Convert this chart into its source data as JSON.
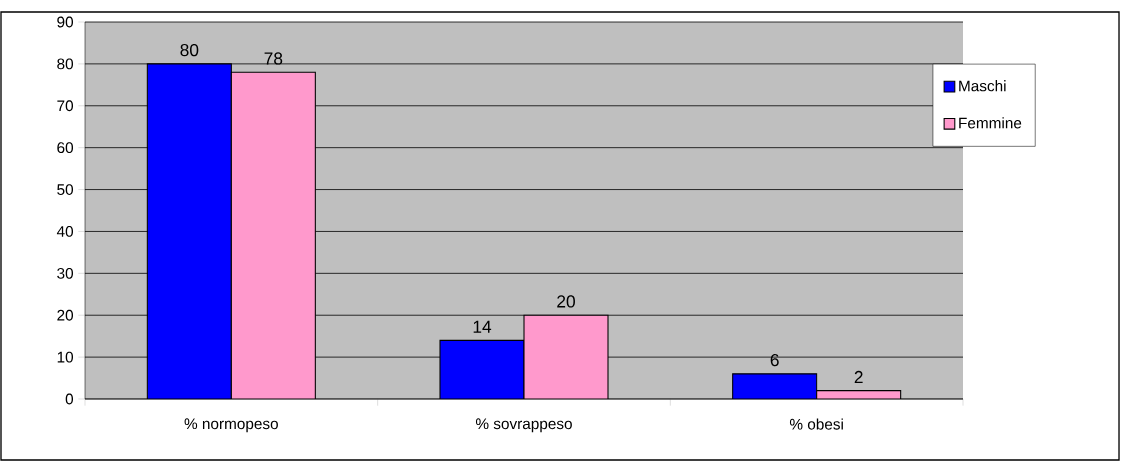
{
  "chart_data": {
    "type": "bar",
    "categories": [
      "% normopeso",
      "% sovrappeso",
      "% obesi"
    ],
    "series": [
      {
        "name": "Maschi",
        "color": "#0000ff",
        "values": [
          80,
          14,
          6
        ]
      },
      {
        "name": "Femmine",
        "color": "#ff99cc",
        "values": [
          78,
          20,
          2
        ]
      }
    ],
    "ylim": [
      0,
      90
    ],
    "yticks": [
      0,
      10,
      20,
      30,
      40,
      50,
      60,
      70,
      80,
      90
    ],
    "grid": "y",
    "legend": "right",
    "data_labels": true
  }
}
